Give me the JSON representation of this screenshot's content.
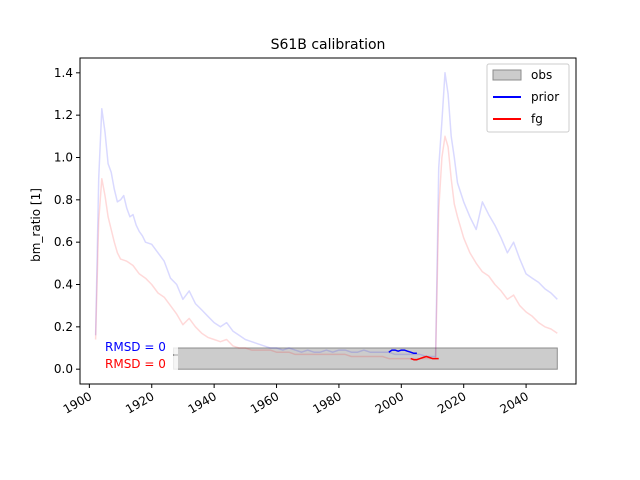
{
  "chart_data": {
    "type": "line",
    "title": "S61B calibration",
    "xlabel": "",
    "ylabel": "bm_ratio [1]",
    "xlim": [
      1897,
      2056
    ],
    "ylim": [
      -0.07,
      1.47
    ],
    "xticks": [
      1900,
      1920,
      1940,
      1960,
      1980,
      2000,
      2020,
      2040
    ],
    "yticks": [
      0.0,
      0.2,
      0.4,
      0.6,
      0.8,
      1.0,
      1.2,
      1.4
    ],
    "xtick_labels": [
      "1900",
      "1920",
      "1940",
      "1960",
      "1980",
      "2000",
      "2020",
      "2040"
    ],
    "ytick_labels": [
      "0.0",
      "0.2",
      "0.4",
      "0.6",
      "0.8",
      "1.0",
      "1.2",
      "1.4"
    ],
    "grid": false,
    "legend": {
      "placement": "top-right",
      "entries": [
        {
          "label": "obs",
          "color": "#cccccc",
          "kind": "patch"
        },
        {
          "label": "prior",
          "color": "#0000ff",
          "kind": "line"
        },
        {
          "label": "fg",
          "color": "#ff0000",
          "kind": "line"
        }
      ]
    },
    "obs_band": {
      "x": [
        1927,
        2050
      ],
      "y": [
        0.0,
        0.1
      ],
      "color": "#cccccc"
    },
    "annotations": [
      {
        "text": "RMSD = 0",
        "color": "#0000ff"
      },
      {
        "text": "RMSD = 0",
        "color": "#ff0000"
      }
    ],
    "series": [
      {
        "name": "prior (faded)",
        "color": "#0000ff",
        "opacity": 0.15,
        "x": [
          1902,
          1903,
          1904,
          1905,
          1906,
          1907,
          1908,
          1909,
          1910,
          1911,
          1912,
          1913,
          1914,
          1915,
          1916,
          1917,
          1918,
          1920,
          1922,
          1924,
          1926,
          1928,
          1930,
          1932,
          1934,
          1936,
          1938,
          1940,
          1942,
          1944,
          1946,
          1948,
          1950,
          1952,
          1954,
          1956,
          1958,
          1960,
          1962,
          1964,
          1966,
          1968,
          1970,
          1972,
          1974,
          1976,
          1978,
          1980,
          1982,
          1984,
          1986,
          1988,
          1990,
          1992,
          1994,
          1996,
          1998,
          2000,
          2002,
          2004,
          2006,
          2008,
          2010,
          2011,
          2012,
          2013,
          2014,
          2015,
          2016,
          2017,
          2018,
          2020,
          2022,
          2024,
          2026,
          2028,
          2030,
          2032,
          2034,
          2036,
          2038,
          2040,
          2042,
          2044,
          2046,
          2048,
          2050
        ],
        "y": [
          0.16,
          0.9,
          1.23,
          1.12,
          0.97,
          0.93,
          0.85,
          0.79,
          0.8,
          0.82,
          0.76,
          0.72,
          0.73,
          0.68,
          0.65,
          0.63,
          0.6,
          0.59,
          0.55,
          0.51,
          0.43,
          0.4,
          0.33,
          0.37,
          0.31,
          0.28,
          0.25,
          0.22,
          0.2,
          0.22,
          0.18,
          0.16,
          0.14,
          0.13,
          0.12,
          0.11,
          0.1,
          0.1,
          0.09,
          0.1,
          0.09,
          0.08,
          0.09,
          0.08,
          0.08,
          0.09,
          0.08,
          0.09,
          0.09,
          0.08,
          0.08,
          0.09,
          0.08,
          0.08,
          0.08,
          0.08,
          0.07,
          0.07,
          0.07,
          0.07,
          0.07,
          0.06,
          0.06,
          0.06,
          0.95,
          1.17,
          1.4,
          1.3,
          1.1,
          1.0,
          0.88,
          0.79,
          0.72,
          0.66,
          0.79,
          0.73,
          0.68,
          0.62,
          0.55,
          0.6,
          0.52,
          0.45,
          0.43,
          0.41,
          0.38,
          0.36,
          0.33
        ]
      },
      {
        "name": "fg (faded)",
        "color": "#ff0000",
        "opacity": 0.15,
        "x": [
          1902,
          1903,
          1904,
          1905,
          1906,
          1907,
          1908,
          1909,
          1910,
          1912,
          1914,
          1916,
          1918,
          1920,
          1922,
          1924,
          1926,
          1928,
          1930,
          1932,
          1934,
          1936,
          1938,
          1940,
          1942,
          1944,
          1946,
          1948,
          1950,
          1952,
          1954,
          1956,
          1958,
          1960,
          1962,
          1964,
          1966,
          1968,
          1970,
          1972,
          1974,
          1976,
          1978,
          1980,
          1982,
          1984,
          1986,
          1988,
          1990,
          1992,
          1994,
          1996,
          1998,
          2000,
          2002,
          2004,
          2006,
          2008,
          2010,
          2011,
          2012,
          2013,
          2014,
          2015,
          2016,
          2017,
          2018,
          2020,
          2022,
          2024,
          2026,
          2028,
          2030,
          2032,
          2034,
          2036,
          2038,
          2040,
          2042,
          2044,
          2046,
          2048,
          2050
        ],
        "y": [
          0.14,
          0.7,
          0.9,
          0.82,
          0.72,
          0.66,
          0.6,
          0.55,
          0.52,
          0.51,
          0.49,
          0.45,
          0.43,
          0.4,
          0.36,
          0.34,
          0.3,
          0.26,
          0.21,
          0.24,
          0.2,
          0.17,
          0.15,
          0.14,
          0.13,
          0.14,
          0.11,
          0.1,
          0.1,
          0.09,
          0.09,
          0.09,
          0.09,
          0.08,
          0.08,
          0.08,
          0.07,
          0.07,
          0.07,
          0.07,
          0.07,
          0.07,
          0.07,
          0.07,
          0.07,
          0.06,
          0.06,
          0.06,
          0.06,
          0.06,
          0.06,
          0.05,
          0.05,
          0.05,
          0.05,
          0.05,
          0.05,
          0.05,
          0.05,
          0.05,
          0.75,
          1.0,
          1.1,
          1.05,
          0.9,
          0.78,
          0.72,
          0.62,
          0.55,
          0.5,
          0.46,
          0.44,
          0.4,
          0.37,
          0.33,
          0.35,
          0.3,
          0.27,
          0.25,
          0.22,
          0.2,
          0.19,
          0.17
        ]
      },
      {
        "name": "prior",
        "color": "#0000ff",
        "opacity": 1,
        "x": [
          1996,
          1997,
          1998,
          1999,
          2000,
          2001,
          2002,
          2003,
          2004,
          2005
        ],
        "y": [
          0.08,
          0.09,
          0.09,
          0.085,
          0.09,
          0.09,
          0.085,
          0.08,
          0.075,
          0.075
        ]
      },
      {
        "name": "fg",
        "color": "#ff0000",
        "opacity": 1,
        "x": [
          2003,
          2004,
          2005,
          2006,
          2007,
          2008,
          2009,
          2010,
          2011,
          2012
        ],
        "y": [
          0.05,
          0.045,
          0.045,
          0.05,
          0.055,
          0.06,
          0.055,
          0.05,
          0.05,
          0.05
        ]
      }
    ]
  }
}
